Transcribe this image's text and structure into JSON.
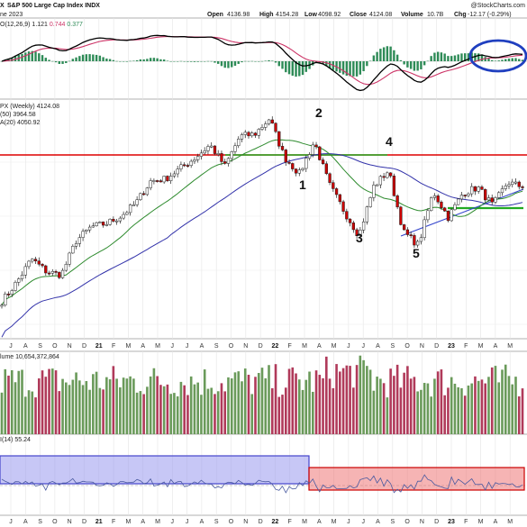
{
  "header": {
    "symbol_title": "S&P 500 Large Cap Index INDX",
    "title_prefix": "X",
    "date_fragment": "ne 2023",
    "ohlc": {
      "open_label": "Open",
      "open": "4136.98",
      "high_label": "High",
      "high": "4154.28",
      "low_label": "Low",
      "low": "4098.92",
      "close_label": "Close",
      "close": "4124.08",
      "volume_label": "Volume",
      "volume": "10.7B",
      "change_label": "Chg",
      "change": "-12.17 (-0.29%)"
    },
    "watermark": "@StockCharts.com"
  },
  "macd": {
    "label": "O(12,26,9) ",
    "v1": "1.121",
    "v2": "0.744",
    "v3": "0.377",
    "colors": {
      "macd": "#000000",
      "signal": "#cc3366",
      "hist": "#2e8b57",
      "circle": "#1f3fbf"
    }
  },
  "price": {
    "label": "PX (Weekly) 4124.08",
    "ma50": "(50) 3964.58",
    "ma20": "A(20) 4050.92",
    "colors": {
      "up": "#ffffff",
      "down": "#cc0000",
      "ma50": "#3333aa",
      "ma20": "#2e8b2e",
      "resistance": "#dd0000",
      "support": "#22aa22",
      "trend": "#3344cc"
    },
    "annotations": [
      "1",
      "2",
      "3",
      "4",
      "5"
    ]
  },
  "volume": {
    "label": "lume 10,654,372,864",
    "colors": {
      "up": "#6a9a5a",
      "down": "#b03a5a"
    }
  },
  "rsi": {
    "label": "I(14) 55.24",
    "colors": {
      "line": "#4a5aa0",
      "zone1": "#9999ee",
      "zone2": "#ee7777"
    }
  },
  "x_axis": {
    "ticks": [
      "J",
      "A",
      "S",
      "O",
      "N",
      "D",
      "21",
      "F",
      "M",
      "A",
      "M",
      "J",
      "J",
      "A",
      "S",
      "O",
      "N",
      "D",
      "22",
      "F",
      "M",
      "A",
      "M",
      "J",
      "J",
      "A",
      "S",
      "O",
      "N",
      "D",
      "23",
      "F",
      "M",
      "A",
      "M"
    ]
  },
  "chart_data": {
    "type": "candlestick",
    "title": "S&P 500 Large Cap Index INDX — PX (Weekly)",
    "period": "weekly, Jun 2020 – May 2023",
    "last": {
      "open": 4136.98,
      "high": 4154.28,
      "low": 4098.92,
      "close": 4124.08,
      "volume": "10.7B",
      "change": -12.17,
      "change_pct": -0.29
    },
    "close_path_points": [
      {
        "date": "2020-06",
        "close": 3050
      },
      {
        "date": "2020-07",
        "close": 3230
      },
      {
        "date": "2020-08",
        "close": 3450
      },
      {
        "date": "2020-09",
        "close": 3330
      },
      {
        "date": "2020-10",
        "close": 3300
      },
      {
        "date": "2020-11",
        "close": 3620
      },
      {
        "date": "2020-12",
        "close": 3750
      },
      {
        "date": "2021-01",
        "close": 3780
      },
      {
        "date": "2021-02",
        "close": 3850
      },
      {
        "date": "2021-03",
        "close": 3970
      },
      {
        "date": "2021-04",
        "close": 4180
      },
      {
        "date": "2021-05",
        "close": 4200
      },
      {
        "date": "2021-06",
        "close": 4300
      },
      {
        "date": "2021-07",
        "close": 4400
      },
      {
        "date": "2021-08",
        "close": 4520
      },
      {
        "date": "2021-09",
        "close": 4320
      },
      {
        "date": "2021-10",
        "close": 4600
      },
      {
        "date": "2021-11",
        "close": 4620
      },
      {
        "date": "2022-01",
        "close": 4770
      },
      {
        "date": "2022-01b",
        "close": 4400
      },
      {
        "date": "2022-02",
        "close": 4250
      },
      {
        "date": "2022-03",
        "close": 4550
      },
      {
        "date": "2022-04",
        "close": 4150
      },
      {
        "date": "2022-05",
        "close": 3900
      },
      {
        "date": "2022-06",
        "close": 3670
      },
      {
        "date": "2022-07",
        "close": 4130
      },
      {
        "date": "2022-08",
        "close": 4280
      },
      {
        "date": "2022-09",
        "close": 3700
      },
      {
        "date": "2022-10",
        "close": 3580
      },
      {
        "date": "2022-11",
        "close": 4080
      },
      {
        "date": "2022-12",
        "close": 3840
      },
      {
        "date": "2023-01",
        "close": 4070
      },
      {
        "date": "2023-02",
        "close": 4120
      },
      {
        "date": "2023-03",
        "close": 3950
      },
      {
        "date": "2023-04",
        "close": 4170
      },
      {
        "date": "2023-05",
        "close": 4124
      }
    ],
    "moving_averages": {
      "ma50": 3964.58,
      "ma20": 4050.92
    },
    "levels": {
      "resistance": 4300,
      "support": 3900
    },
    "annotations": [
      {
        "label": "1",
        "near": "2022-01 low"
      },
      {
        "label": "2",
        "near": "2022-03 high"
      },
      {
        "label": "3",
        "near": "2022-06 low"
      },
      {
        "label": "4",
        "near": "2022-08 high"
      },
      {
        "label": "5",
        "near": "2022-10 low"
      }
    ],
    "indicators": {
      "macd": {
        "params": "12,26,9",
        "values": [
          1.121,
          0.744,
          0.377
        ]
      },
      "volume": 10654372864,
      "rsi": {
        "period": 14,
        "value": 55.24
      }
    }
  }
}
